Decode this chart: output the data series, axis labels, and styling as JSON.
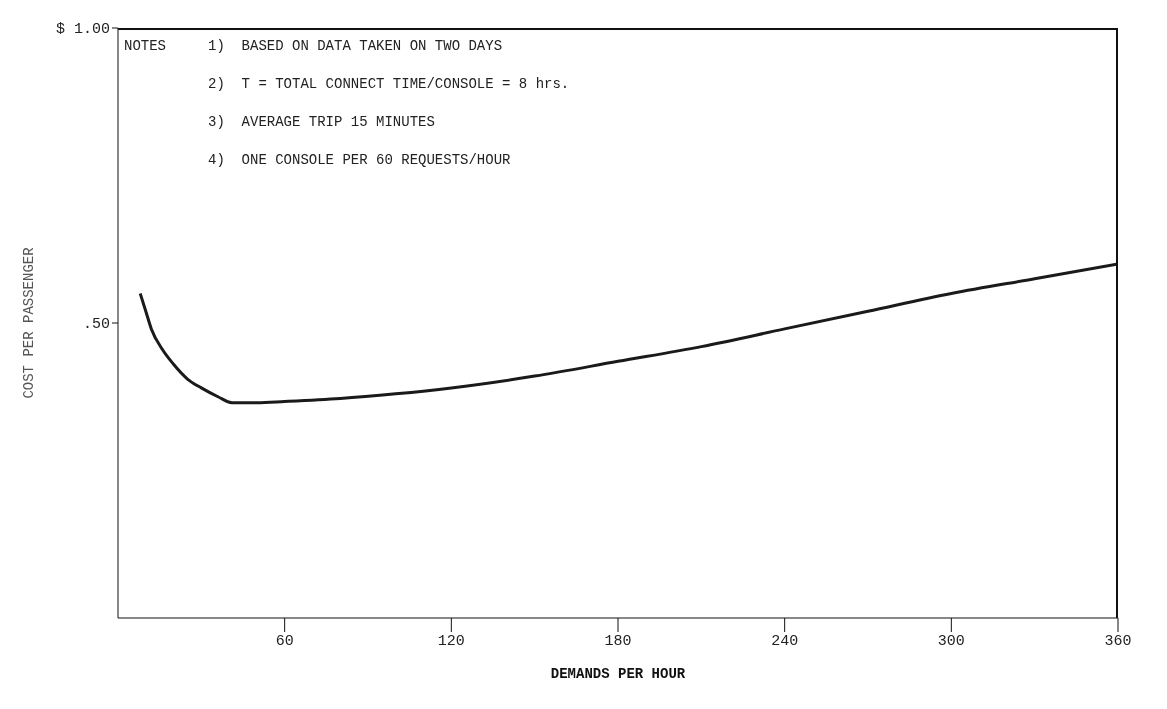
{
  "chart_data": {
    "type": "line",
    "xlabel": "DEMANDS PER HOUR",
    "ylabel": "COST PER PASSENGER",
    "annotations": [
      "NOTES",
      "1)  BASED ON DATA TAKEN ON TWO DAYS",
      "2)  T = TOTAL CONNECT TIME/CONSOLE = 8 hrs.",
      "3)  AVERAGE TRIP 15 MINUTES",
      "4)  ONE CONSOLE PER 60 REQUESTS/HOUR"
    ],
    "x": [
      8,
      10,
      12,
      16,
      20,
      25,
      30,
      36,
      41,
      50,
      60,
      80,
      100,
      120,
      150,
      180,
      210,
      240,
      270,
      300,
      330,
      360
    ],
    "series": [
      {
        "color": "#1a1a1a",
        "values": [
          0.55,
          0.52,
          0.49,
          0.455,
          0.43,
          0.405,
          0.39,
          0.375,
          0.365,
          0.365,
          0.367,
          0.372,
          0.38,
          0.39,
          0.41,
          0.435,
          0.46,
          0.49,
          0.52,
          0.55,
          0.575,
          0.6
        ]
      }
    ],
    "xlim": [
      0,
      360
    ],
    "xticks": [
      60,
      120,
      180,
      240,
      300,
      360
    ],
    "ylim": [
      0,
      1
    ],
    "yticks": [
      {
        "value": 0.5,
        "label": ".50"
      },
      {
        "value": 1,
        "label": "$ 1.00"
      }
    ],
    "grid": false,
    "legend": false,
    "marker": "none",
    "line_style": "solid"
  }
}
